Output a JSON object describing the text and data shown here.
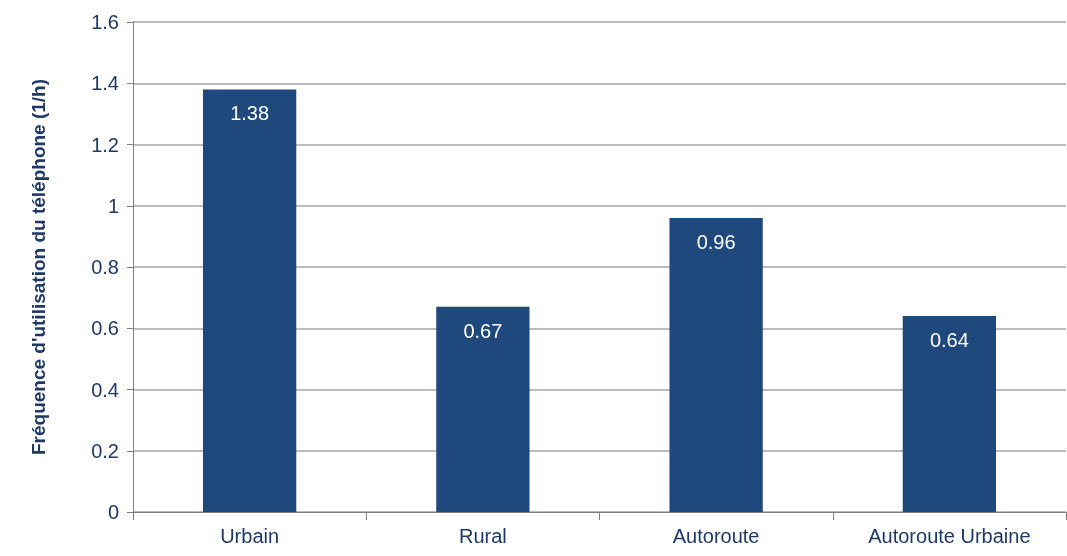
{
  "chart_data": {
    "type": "bar",
    "ylabel": "Fréquence d'utilisation du téléphone (1/h)",
    "categories": [
      "Urbain",
      "Rural",
      "Autoroute",
      "Autoroute Urbaine"
    ],
    "values": [
      1.38,
      0.67,
      0.96,
      0.64
    ],
    "color": "#1f497d",
    "ylim": [
      0,
      1.6
    ],
    "yticks": [
      0,
      0.2,
      0.4,
      0.6,
      0.8,
      1,
      1.2,
      1.4,
      1.6
    ],
    "grid": "y",
    "data_labels": true
  }
}
